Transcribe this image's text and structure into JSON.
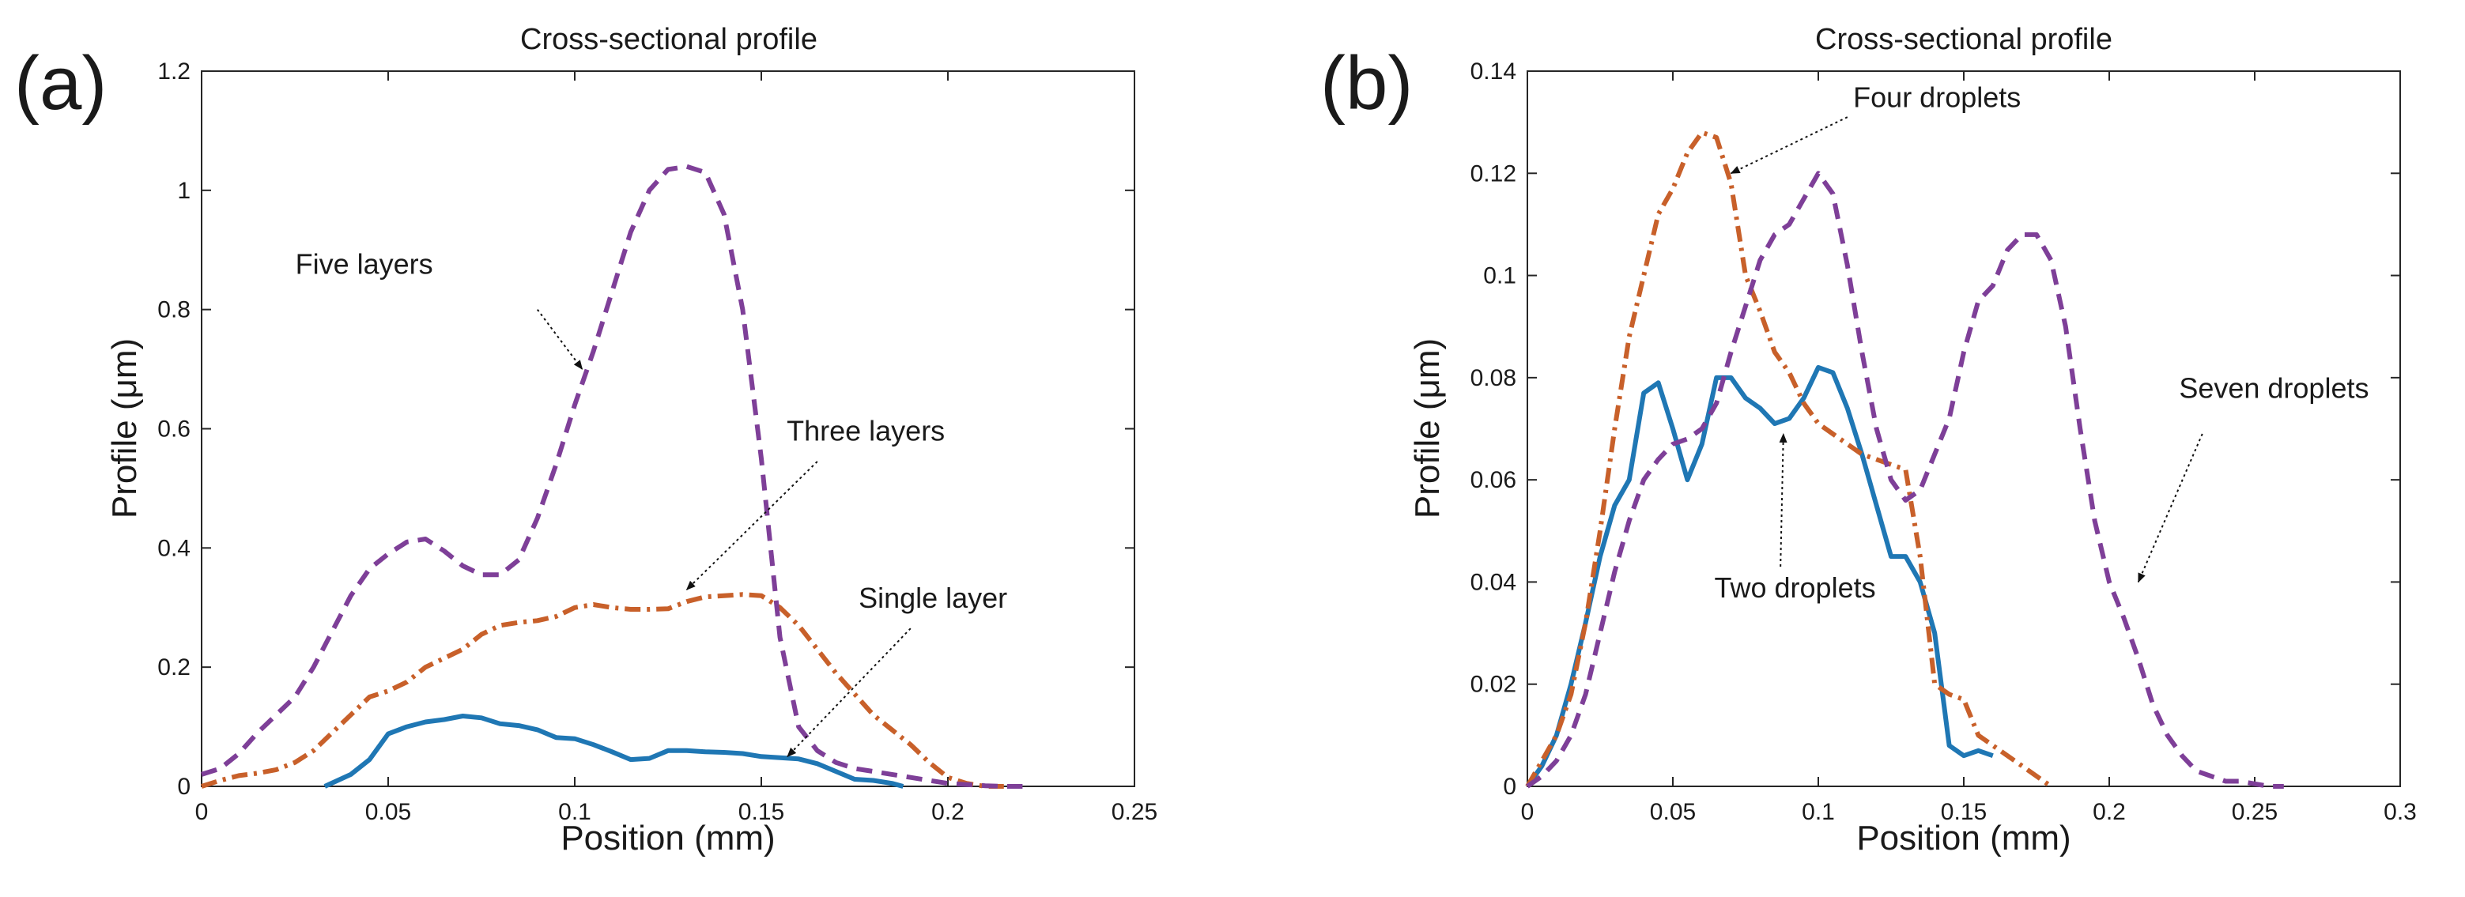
{
  "colors": {
    "blue": "#1f77b4",
    "orange": "#c8602a",
    "purple": "#7e3f98",
    "axis": "#262626"
  },
  "panels": [
    {
      "label": "(a)",
      "chart_data": {
        "type": "line",
        "title": "Cross-sectional profile",
        "xlabel": "Position (mm)",
        "ylabel": "Profile (μm)",
        "xlim": [
          0,
          0.25
        ],
        "ylim": [
          0,
          1.2
        ],
        "xticks": [
          0,
          0.05,
          0.1,
          0.15,
          0.2,
          0.25
        ],
        "xtick_labels": [
          "0",
          "0.05",
          "0.1",
          "0.15",
          "0.2",
          "0.25"
        ],
        "yticks": [
          0,
          0.2,
          0.4,
          0.6,
          0.8,
          1,
          1.2
        ],
        "ytick_labels": [
          "0",
          "0.2",
          "0.4",
          "0.6",
          "0.8",
          "1",
          "1.2"
        ],
        "grid": false,
        "series": [
          {
            "name": "Single layer",
            "color_key": "blue",
            "style": "solid",
            "x": [
              0.033,
              0.04,
              0.045,
              0.05,
              0.055,
              0.06,
              0.065,
              0.07,
              0.075,
              0.08,
              0.085,
              0.09,
              0.095,
              0.1,
              0.105,
              0.11,
              0.115,
              0.12,
              0.125,
              0.13,
              0.135,
              0.14,
              0.145,
              0.15,
              0.155,
              0.16,
              0.165,
              0.17,
              0.175,
              0.18,
              0.185,
              0.188
            ],
            "y": [
              0.0,
              0.02,
              0.045,
              0.088,
              0.1,
              0.108,
              0.112,
              0.118,
              0.115,
              0.105,
              0.102,
              0.095,
              0.082,
              0.08,
              0.07,
              0.058,
              0.045,
              0.047,
              0.06,
              0.06,
              0.058,
              0.057,
              0.055,
              0.05,
              0.048,
              0.046,
              0.038,
              0.025,
              0.012,
              0.01,
              0.005,
              0.0
            ]
          },
          {
            "name": "Three layers",
            "color_key": "orange",
            "style": "dashdot",
            "x": [
              0.0,
              0.005,
              0.01,
              0.015,
              0.02,
              0.025,
              0.03,
              0.035,
              0.04,
              0.045,
              0.05,
              0.055,
              0.06,
              0.065,
              0.07,
              0.075,
              0.08,
              0.085,
              0.09,
              0.095,
              0.1,
              0.105,
              0.11,
              0.115,
              0.12,
              0.125,
              0.13,
              0.135,
              0.14,
              0.145,
              0.15,
              0.155,
              0.16,
              0.165,
              0.17,
              0.175,
              0.18,
              0.185,
              0.19,
              0.195,
              0.2,
              0.205,
              0.21,
              0.215
            ],
            "y": [
              0.0,
              0.01,
              0.018,
              0.022,
              0.028,
              0.04,
              0.06,
              0.09,
              0.12,
              0.15,
              0.16,
              0.175,
              0.2,
              0.215,
              0.23,
              0.255,
              0.27,
              0.275,
              0.278,
              0.285,
              0.3,
              0.305,
              0.3,
              0.297,
              0.297,
              0.298,
              0.31,
              0.318,
              0.32,
              0.322,
              0.32,
              0.3,
              0.27,
              0.23,
              0.19,
              0.155,
              0.12,
              0.095,
              0.07,
              0.04,
              0.015,
              0.005,
              0.0,
              0.0
            ]
          },
          {
            "name": "Five layers",
            "color_key": "purple",
            "style": "dashed",
            "x": [
              0.0,
              0.005,
              0.01,
              0.015,
              0.02,
              0.025,
              0.03,
              0.035,
              0.04,
              0.045,
              0.05,
              0.055,
              0.06,
              0.065,
              0.07,
              0.075,
              0.08,
              0.085,
              0.09,
              0.095,
              0.1,
              0.105,
              0.11,
              0.115,
              0.12,
              0.125,
              0.13,
              0.135,
              0.14,
              0.145,
              0.15,
              0.155,
              0.16,
              0.165,
              0.17,
              0.175,
              0.18,
              0.185,
              0.19,
              0.195,
              0.2,
              0.205,
              0.21,
              0.215,
              0.22
            ],
            "y": [
              0.02,
              0.03,
              0.055,
              0.09,
              0.12,
              0.15,
              0.2,
              0.26,
              0.32,
              0.365,
              0.39,
              0.41,
              0.415,
              0.395,
              0.37,
              0.355,
              0.355,
              0.38,
              0.45,
              0.54,
              0.64,
              0.73,
              0.83,
              0.93,
              1.0,
              1.035,
              1.04,
              1.03,
              0.96,
              0.8,
              0.55,
              0.25,
              0.1,
              0.06,
              0.04,
              0.03,
              0.025,
              0.02,
              0.015,
              0.01,
              0.005,
              0.003,
              0.001,
              0.0,
              0.0
            ]
          }
        ],
        "annotations": [
          {
            "text": "Five layers",
            "anchor": "end",
            "text_x": 0.062,
            "text_y": 0.86,
            "arrow_from": [
              0.09,
              0.8
            ],
            "arrow_to": [
              0.102,
              0.7
            ]
          },
          {
            "text": "Three layers",
            "anchor": "middle",
            "text_x": 0.178,
            "text_y": 0.58,
            "arrow_from": [
              0.165,
              0.545
            ],
            "arrow_to": [
              0.13,
              0.33
            ]
          },
          {
            "text": "Single layer",
            "anchor": "middle",
            "text_x": 0.196,
            "text_y": 0.3,
            "arrow_from": [
              0.19,
              0.265
            ],
            "arrow_to": [
              0.157,
              0.05
            ]
          }
        ]
      }
    },
    {
      "label": "(b)",
      "chart_data": {
        "type": "line",
        "title": "Cross-sectional profile",
        "xlabel": "Position (mm)",
        "ylabel": "Profile (μm)",
        "xlim": [
          0,
          0.3
        ],
        "ylim": [
          0,
          0.14
        ],
        "xticks": [
          0,
          0.05,
          0.1,
          0.15,
          0.2,
          0.25,
          0.3
        ],
        "xtick_labels": [
          "0",
          "0.05",
          "0.1",
          "0.15",
          "0.2",
          "0.25",
          "0.3"
        ],
        "yticks": [
          0,
          0.02,
          0.04,
          0.06,
          0.08,
          0.1,
          0.12,
          0.14
        ],
        "ytick_labels": [
          "0",
          "0.02",
          "0.04",
          "0.06",
          "0.08",
          "0.1",
          "0.12",
          "0.14"
        ],
        "grid": false,
        "series": [
          {
            "name": "Two droplets",
            "color_key": "blue",
            "style": "solid",
            "x": [
              0.0,
              0.005,
              0.01,
              0.015,
              0.02,
              0.025,
              0.03,
              0.035,
              0.04,
              0.045,
              0.05,
              0.055,
              0.06,
              0.065,
              0.07,
              0.075,
              0.08,
              0.085,
              0.09,
              0.095,
              0.1,
              0.105,
              0.11,
              0.115,
              0.12,
              0.125,
              0.13,
              0.135,
              0.14,
              0.145,
              0.15,
              0.155,
              0.16
            ],
            "y": [
              0.0,
              0.004,
              0.01,
              0.02,
              0.032,
              0.045,
              0.055,
              0.06,
              0.077,
              0.079,
              0.07,
              0.06,
              0.067,
              0.08,
              0.08,
              0.076,
              0.074,
              0.071,
              0.072,
              0.076,
              0.082,
              0.081,
              0.074,
              0.065,
              0.055,
              0.045,
              0.045,
              0.04,
              0.03,
              0.008,
              0.006,
              0.007,
              0.006
            ]
          },
          {
            "name": "Four droplets",
            "color_key": "orange",
            "style": "dashdot",
            "x": [
              0.0,
              0.005,
              0.01,
              0.015,
              0.02,
              0.025,
              0.03,
              0.035,
              0.04,
              0.045,
              0.05,
              0.055,
              0.06,
              0.065,
              0.07,
              0.075,
              0.08,
              0.085,
              0.09,
              0.095,
              0.1,
              0.105,
              0.11,
              0.115,
              0.12,
              0.125,
              0.13,
              0.135,
              0.14,
              0.145,
              0.15,
              0.155,
              0.16,
              0.165,
              0.17,
              0.175,
              0.18
            ],
            "y": [
              0.0,
              0.005,
              0.01,
              0.018,
              0.032,
              0.05,
              0.07,
              0.088,
              0.1,
              0.112,
              0.117,
              0.124,
              0.128,
              0.127,
              0.118,
              0.1,
              0.093,
              0.085,
              0.081,
              0.075,
              0.071,
              0.069,
              0.067,
              0.065,
              0.064,
              0.063,
              0.062,
              0.045,
              0.02,
              0.018,
              0.017,
              0.01,
              0.008,
              0.006,
              0.004,
              0.002,
              0.0
            ]
          },
          {
            "name": "Seven droplets",
            "color_key": "purple",
            "style": "dashed",
            "x": [
              0.0,
              0.005,
              0.01,
              0.015,
              0.02,
              0.025,
              0.03,
              0.035,
              0.04,
              0.045,
              0.05,
              0.055,
              0.06,
              0.065,
              0.07,
              0.075,
              0.08,
              0.085,
              0.09,
              0.095,
              0.1,
              0.105,
              0.11,
              0.115,
              0.12,
              0.125,
              0.13,
              0.135,
              0.14,
              0.145,
              0.15,
              0.155,
              0.16,
              0.165,
              0.17,
              0.175,
              0.18,
              0.185,
              0.19,
              0.195,
              0.2,
              0.205,
              0.21,
              0.215,
              0.22,
              0.225,
              0.23,
              0.235,
              0.24,
              0.245,
              0.25,
              0.255,
              0.26
            ],
            "y": [
              0.0,
              0.002,
              0.005,
              0.01,
              0.018,
              0.03,
              0.042,
              0.052,
              0.06,
              0.064,
              0.067,
              0.068,
              0.07,
              0.075,
              0.085,
              0.094,
              0.103,
              0.108,
              0.11,
              0.115,
              0.12,
              0.116,
              0.102,
              0.085,
              0.07,
              0.06,
              0.056,
              0.058,
              0.065,
              0.072,
              0.085,
              0.095,
              0.098,
              0.105,
              0.108,
              0.108,
              0.103,
              0.09,
              0.07,
              0.052,
              0.04,
              0.033,
              0.025,
              0.016,
              0.01,
              0.006,
              0.003,
              0.002,
              0.001,
              0.001,
              0.0005,
              0.0,
              0.0
            ]
          }
        ],
        "annotations": [
          {
            "text": "Four droplets",
            "anchor": "start",
            "text_x": 0.112,
            "text_y": 0.133,
            "arrow_from": [
              0.11,
              0.131
            ],
            "arrow_to": [
              0.07,
              0.12
            ]
          },
          {
            "text": "Seven droplets",
            "anchor": "start",
            "text_x": 0.224,
            "text_y": 0.076,
            "arrow_from": [
              0.232,
              0.069
            ],
            "arrow_to": [
              0.21,
              0.04
            ]
          },
          {
            "text": "Two droplets",
            "anchor": "middle",
            "text_x": 0.092,
            "text_y": 0.037,
            "arrow_from": [
              0.087,
              0.043
            ],
            "arrow_to": [
              0.088,
              0.069
            ]
          }
        ]
      }
    }
  ]
}
